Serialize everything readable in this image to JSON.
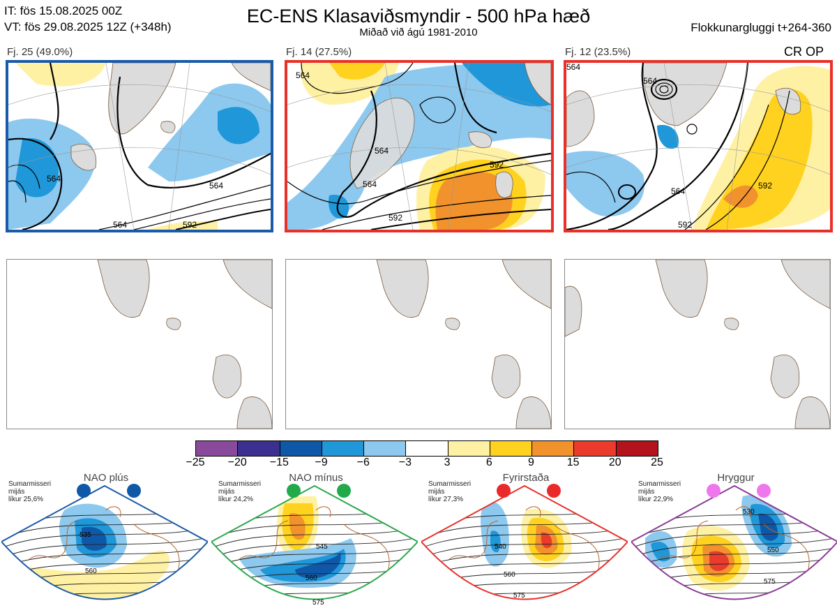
{
  "header": {
    "it_line": "IT: fös 15.08.2025 00Z",
    "vt_line": "VT: fös 29.08.2025 12Z  (+348h)",
    "title": "EC-ENS Klasaviðsmyndir - 500 hPa hæð",
    "subtitle": "Miðað við ágú 1981-2010",
    "window": "Flokkunargluggi t+264-360"
  },
  "clusters": [
    {
      "label": "Fj. 25 (49.0%)",
      "members": 25,
      "percent": 49.0,
      "border": "#1a5aa8",
      "contours": [
        "564",
        "564",
        "564",
        "592"
      ]
    },
    {
      "label": "Fj. 14 (27.5%)",
      "members": 14,
      "percent": 27.5,
      "border": "#e8302a",
      "contours": [
        "564",
        "564",
        "564",
        "592",
        "592"
      ]
    },
    {
      "label": "Fj. 12 (23.5%)",
      "members": 12,
      "percent": 23.5,
      "border": "#e8302a",
      "contours": [
        "564",
        "564",
        "564",
        "592",
        "592"
      ],
      "tag": "CR OP"
    }
  ],
  "colorbar": {
    "ticks": [
      "−25",
      "−20",
      "−15",
      "−9",
      "−6",
      "−3",
      "3",
      "6",
      "9",
      "15",
      "20",
      "25"
    ],
    "colors": [
      "#8a4a9c",
      "#3b2f8f",
      "#0f58a8",
      "#1f97d9",
      "#8dc8ee",
      "#ffffff",
      "#fff1a3",
      "#ffd21f",
      "#f2922d",
      "#ea3b2c",
      "#b3131d"
    ]
  },
  "regimes": [
    {
      "name": "NAO plús",
      "note": [
        "Sumarmisseri",
        "mijás",
        "líkur 25,6%"
      ],
      "color": "#0f58a8",
      "border": "#1a5aa8",
      "contours": [
        "535",
        "560"
      ]
    },
    {
      "name": "NAO mínus",
      "note": [
        "Sumarmisseri",
        "mijás",
        "líkur 24,2%"
      ],
      "color": "#22aa4a",
      "border": "#2aa84a",
      "contours": [
        "545",
        "560",
        "575"
      ]
    },
    {
      "name": "Fyrirstaða",
      "note": [
        "Sumarmisseri",
        "mijás",
        "líkur 27,3%"
      ],
      "color": "#ea2a2a",
      "border": "#e8302a",
      "contours": [
        "540",
        "560",
        "575"
      ]
    },
    {
      "name": "Hryggur",
      "note": [
        "Sumarmisseri",
        "mijás",
        "líkur 22,9%"
      ],
      "color": "#ee77ee",
      "border": "#8b3a96",
      "contours": [
        "530",
        "550",
        "575"
      ]
    }
  ]
}
